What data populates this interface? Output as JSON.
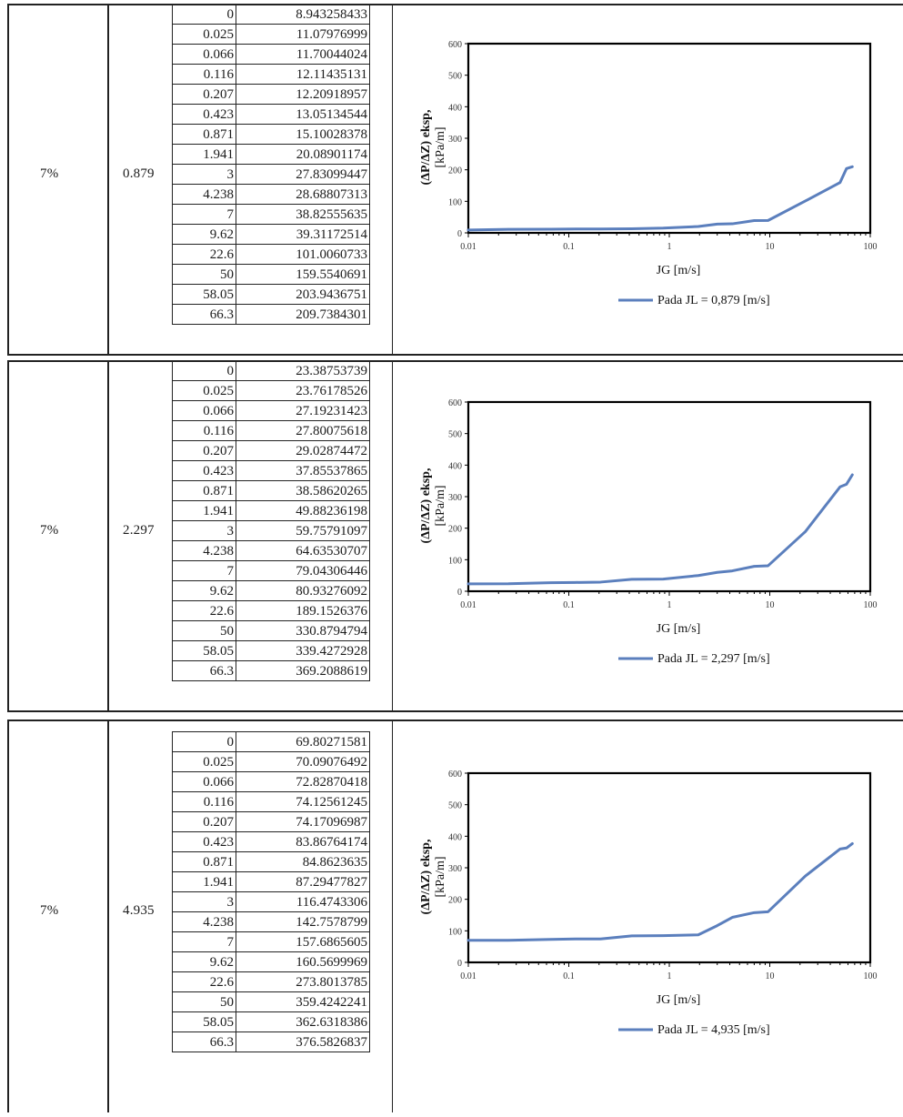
{
  "blocks": [
    {
      "pct": "7%",
      "jl": "0.879",
      "rows": [
        [
          "0",
          "8.943258433"
        ],
        [
          "0.025",
          "11.07976999"
        ],
        [
          "0.066",
          "11.70044024"
        ],
        [
          "0.116",
          "12.11435131"
        ],
        [
          "0.207",
          "12.20918957"
        ],
        [
          "0.423",
          "13.05134544"
        ],
        [
          "0.871",
          "15.10028378"
        ],
        [
          "1.941",
          "20.08901174"
        ],
        [
          "3",
          "27.83099447"
        ],
        [
          "4.238",
          "28.68807313"
        ],
        [
          "7",
          "38.82555635"
        ],
        [
          "9.62",
          "39.31172514"
        ],
        [
          "22.6",
          "101.0060733"
        ],
        [
          "50",
          "159.5540691"
        ],
        [
          "58.05",
          "203.9436751"
        ],
        [
          "66.3",
          "209.7384301"
        ]
      ],
      "legend": "Pada JL = 0,879 [m/s]"
    },
    {
      "pct": "7%",
      "jl": "2.297",
      "rows": [
        [
          "0",
          "23.38753739"
        ],
        [
          "0.025",
          "23.76178526"
        ],
        [
          "0.066",
          "27.19231423"
        ],
        [
          "0.116",
          "27.80075618"
        ],
        [
          "0.207",
          "29.02874472"
        ],
        [
          "0.423",
          "37.85537865"
        ],
        [
          "0.871",
          "38.58620265"
        ],
        [
          "1.941",
          "49.88236198"
        ],
        [
          "3",
          "59.75791097"
        ],
        [
          "4.238",
          "64.63530707"
        ],
        [
          "7",
          "79.04306446"
        ],
        [
          "9.62",
          "80.93276092"
        ],
        [
          "22.6",
          "189.1526376"
        ],
        [
          "50",
          "330.8794794"
        ],
        [
          "58.05",
          "339.4272928"
        ],
        [
          "66.3",
          "369.2088619"
        ]
      ],
      "legend": "Pada JL = 2,297 [m/s]"
    },
    {
      "pct": "7%",
      "jl": "4.935",
      "rows": [
        [
          "0",
          "69.80271581"
        ],
        [
          "0.025",
          "70.09076492"
        ],
        [
          "0.066",
          "72.82870418"
        ],
        [
          "0.116",
          "74.12561245"
        ],
        [
          "0.207",
          "74.17096987"
        ],
        [
          "0.423",
          "83.86764174"
        ],
        [
          "0.871",
          "84.8623635"
        ],
        [
          "1.941",
          "87.29477827"
        ],
        [
          "3",
          "116.4743306"
        ],
        [
          "4.238",
          "142.7578799"
        ],
        [
          "7",
          "157.6865605"
        ],
        [
          "9.62",
          "160.5699969"
        ],
        [
          "22.6",
          "273.8013785"
        ],
        [
          "50",
          "359.4242241"
        ],
        [
          "58.05",
          "362.6318386"
        ],
        [
          "66.3",
          "376.5826837"
        ]
      ],
      "legend": "Pada JL = 4,935 [m/s]"
    }
  ],
  "chart_data": [
    {
      "type": "line",
      "xscale": "log",
      "xlim": [
        0.01,
        100
      ],
      "ylim": [
        0,
        600
      ],
      "xticks": [
        "0.01",
        "0.1",
        "1",
        "10",
        "100"
      ],
      "yticks": [
        "0",
        "100",
        "200",
        "300",
        "400",
        "500",
        "600"
      ],
      "xlabel": "JG [m/s]",
      "ylabel_line1": "(ΔP/ΔZ) eksp,",
      "ylabel_line2": "[kPa/m]",
      "legend_position": "bottom",
      "color": "#5b7fbd",
      "series": [
        {
          "name": "Pada JL = 0,879 [m/s]",
          "x": [
            0.01,
            0.025,
            0.066,
            0.116,
            0.207,
            0.423,
            0.871,
            1.941,
            3,
            4.238,
            7,
            9.62,
            22.6,
            50,
            58.05,
            66.3
          ],
          "y": [
            8.943258433,
            11.07976999,
            11.70044024,
            12.11435131,
            12.20918957,
            13.05134544,
            15.10028378,
            20.08901174,
            27.83099447,
            28.68807313,
            38.82555635,
            39.31172514,
            101.0060733,
            159.5540691,
            203.9436751,
            209.7384301
          ]
        }
      ]
    },
    {
      "type": "line",
      "xscale": "log",
      "xlim": [
        0.01,
        100
      ],
      "ylim": [
        0,
        600
      ],
      "xticks": [
        "0.01",
        "0.1",
        "1",
        "10",
        "100"
      ],
      "yticks": [
        "0",
        "100",
        "200",
        "300",
        "400",
        "500",
        "600"
      ],
      "xlabel": "JG [m/s]",
      "ylabel_line1": "(ΔP/ΔZ) eksp,",
      "ylabel_line2": "[kPa/m]",
      "legend_position": "bottom",
      "color": "#5b7fbd",
      "series": [
        {
          "name": "Pada JL = 2,297 [m/s]",
          "x": [
            0.01,
            0.025,
            0.066,
            0.116,
            0.207,
            0.423,
            0.871,
            1.941,
            3,
            4.238,
            7,
            9.62,
            22.6,
            50,
            58.05,
            66.3
          ],
          "y": [
            23.38753739,
            23.76178526,
            27.19231423,
            27.80075618,
            29.02874472,
            37.85537865,
            38.58620265,
            49.88236198,
            59.75791097,
            64.63530707,
            79.04306446,
            80.93276092,
            189.1526376,
            330.8794794,
            339.4272928,
            369.2088619
          ]
        }
      ]
    },
    {
      "type": "line",
      "xscale": "log",
      "xlim": [
        0.01,
        100
      ],
      "ylim": [
        0,
        600
      ],
      "xticks": [
        "0.01",
        "0.1",
        "1",
        "10",
        "100"
      ],
      "yticks": [
        "0",
        "100",
        "200",
        "300",
        "400",
        "500",
        "600"
      ],
      "xlabel": "JG [m/s]",
      "ylabel_line1": "(ΔP/ΔZ) eksp,",
      "ylabel_line2": "[kPa/m]",
      "legend_position": "bottom",
      "color": "#5b7fbd",
      "series": [
        {
          "name": "Pada JL = 4,935 [m/s]",
          "x": [
            0.01,
            0.025,
            0.066,
            0.116,
            0.207,
            0.423,
            0.871,
            1.941,
            3,
            4.238,
            7,
            9.62,
            22.6,
            50,
            58.05,
            66.3
          ],
          "y": [
            69.80271581,
            70.09076492,
            72.82870418,
            74.12561245,
            74.17096987,
            83.86764174,
            84.8623635,
            87.29477827,
            116.4743306,
            142.7578799,
            157.6865605,
            160.5699969,
            273.8013785,
            359.4242241,
            362.6318386,
            376.5826837
          ]
        }
      ]
    }
  ]
}
